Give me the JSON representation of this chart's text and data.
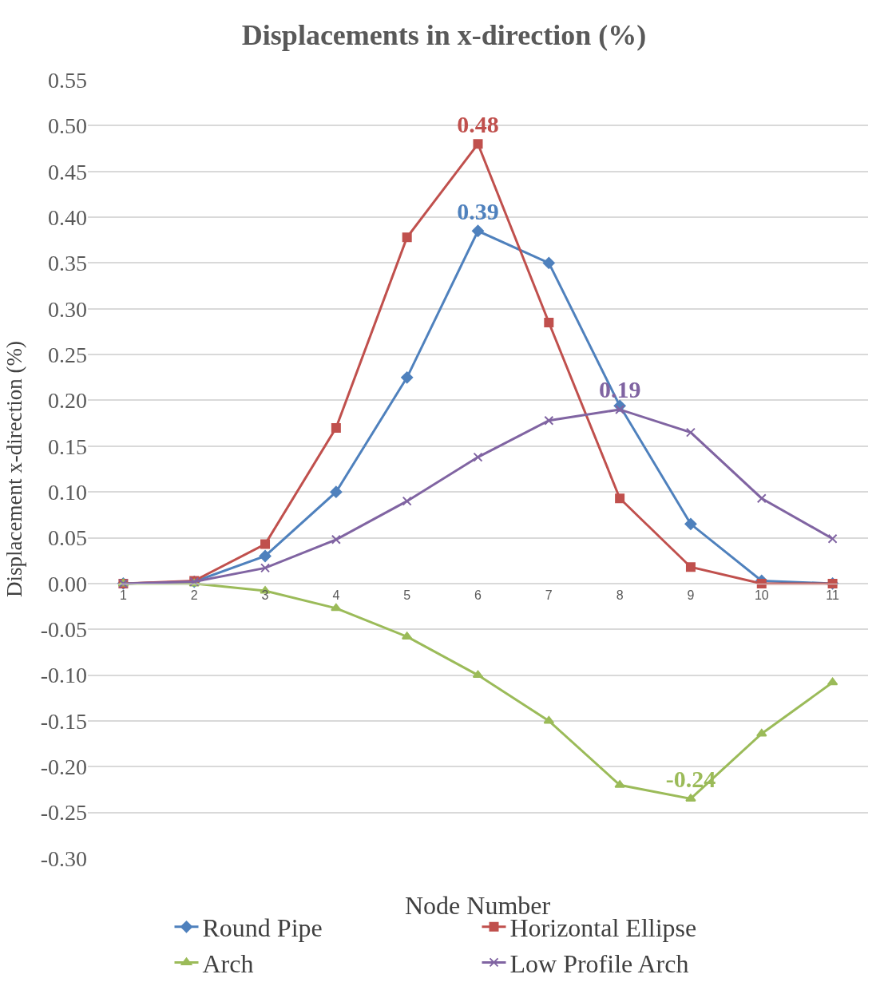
{
  "chart_data": {
    "type": "line",
    "title": "Displacements in x-direction (%)",
    "xlabel": "Node Number",
    "ylabel": "Displacement x-direction (%)",
    "categories": [
      "1",
      "2",
      "3",
      "4",
      "5",
      "6",
      "7",
      "8",
      "9",
      "10",
      "11"
    ],
    "series": [
      {
        "name": "Round Pipe",
        "color": "#4f81bd",
        "marker": "diamond",
        "values": [
          0,
          0.002,
          0.03,
          0.1,
          0.225,
          0.385,
          0.35,
          0.194,
          0.065,
          0.003,
          0
        ],
        "value_labels": [
          null,
          null,
          null,
          null,
          null,
          "0.39",
          null,
          null,
          null,
          null,
          null
        ]
      },
      {
        "name": "Horizontal Ellipse",
        "color": "#c0504d",
        "marker": "square",
        "values": [
          0,
          0.003,
          0.043,
          0.17,
          0.378,
          0.48,
          0.285,
          0.093,
          0.018,
          0,
          0
        ],
        "value_labels": [
          null,
          null,
          null,
          null,
          null,
          "0.48",
          null,
          null,
          null,
          null,
          null
        ]
      },
      {
        "name": "Arch",
        "color": "#9bbb59",
        "marker": "triangle",
        "values": [
          0,
          0,
          -0.008,
          -0.027,
          -0.058,
          -0.1,
          -0.15,
          -0.22,
          -0.235,
          -0.164,
          -0.108
        ],
        "value_labels": [
          null,
          null,
          null,
          null,
          null,
          null,
          null,
          null,
          "-0.24",
          null,
          null
        ]
      },
      {
        "name": "Low Profile Arch",
        "color": "#8064a2",
        "marker": "cross",
        "values": [
          0,
          0.002,
          0.017,
          0.048,
          0.09,
          0.138,
          0.178,
          0.19,
          0.165,
          0.093,
          0.049
        ],
        "value_labels": [
          null,
          null,
          null,
          null,
          null,
          null,
          null,
          "0.19",
          null,
          null,
          null
        ]
      }
    ],
    "ylim": [
      -0.3,
      0.55
    ],
    "yticks": [
      {
        "value": -0.3,
        "label": "-0.30"
      },
      {
        "value": -0.25,
        "label": "-0.25"
      },
      {
        "value": -0.2,
        "label": "-0.20"
      },
      {
        "value": -0.15,
        "label": "-0.15"
      },
      {
        "value": -0.1,
        "label": "-0.10"
      },
      {
        "value": -0.05,
        "label": "-0.05"
      },
      {
        "value": 0,
        "label": "0.00"
      },
      {
        "value": 0.05,
        "label": "0.05"
      },
      {
        "value": 0.1,
        "label": "0.10"
      },
      {
        "value": 0.15,
        "label": "0.15"
      },
      {
        "value": 0.2,
        "label": "0.20"
      },
      {
        "value": 0.25,
        "label": "0.25"
      },
      {
        "value": 0.3,
        "label": "0.30"
      },
      {
        "value": 0.35,
        "label": "0.35"
      },
      {
        "value": 0.4,
        "label": "0.40"
      },
      {
        "value": 0.45,
        "label": "0.45"
      },
      {
        "value": 0.5,
        "label": "0.50"
      },
      {
        "value": 0.55,
        "label": "0.55"
      }
    ],
    "grid": "y",
    "legend": "bottom",
    "line_style": "solid"
  }
}
